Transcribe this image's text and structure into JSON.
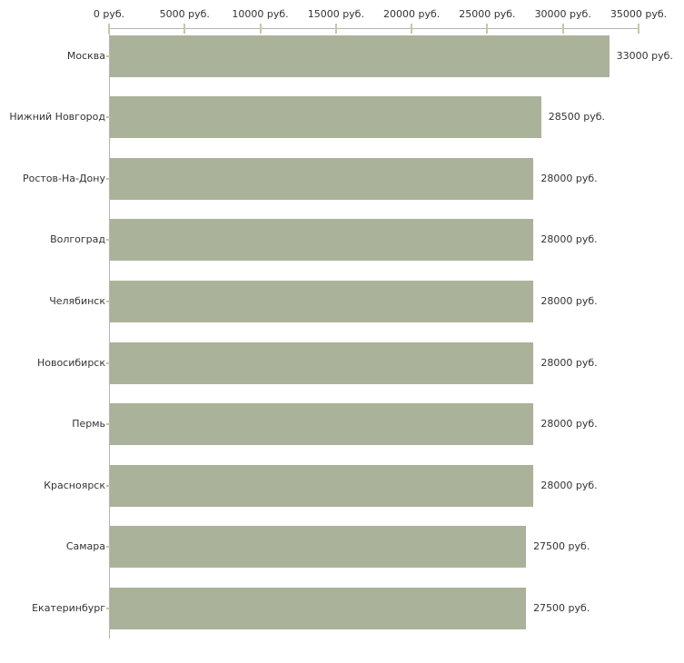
{
  "chart_data": {
    "type": "bar",
    "orientation": "horizontal",
    "title": "",
    "xlabel": "",
    "ylabel": "",
    "categories": [
      "Москва",
      "Нижний Новгород",
      "Ростов-На-Дону",
      "Волгоград",
      "Челябинск",
      "Новосибирск",
      "Пермь",
      "Красноярск",
      "Самара",
      "Екатеринбург"
    ],
    "values": [
      33000,
      28500,
      28000,
      28000,
      28000,
      28000,
      28000,
      28000,
      27500,
      27500
    ],
    "value_labels": [
      "33000 руб.",
      "28500 руб.",
      "28000 руб.",
      "28000 руб.",
      "28000 руб.",
      "28000 руб.",
      "28000 руб.",
      "28000 руб.",
      "27500 руб.",
      "27500 руб."
    ],
    "x_tick_values": [
      0,
      5000,
      10000,
      15000,
      20000,
      25000,
      30000,
      35000
    ],
    "x_tick_labels": [
      "0 руб.",
      "5000 руб.",
      "10000 руб.",
      "15000 руб.",
      "20000 руб.",
      "25000 руб.",
      "30000 руб.",
      "35000 руб."
    ],
    "xlim": [
      0,
      35000
    ],
    "grid": false,
    "legend": false,
    "colors": {
      "bar": "#abb29a",
      "axis_line": "#b4b4b4",
      "tick_mark": "#c6c8a2",
      "text": "#333333",
      "background": "#ffffff"
    }
  }
}
